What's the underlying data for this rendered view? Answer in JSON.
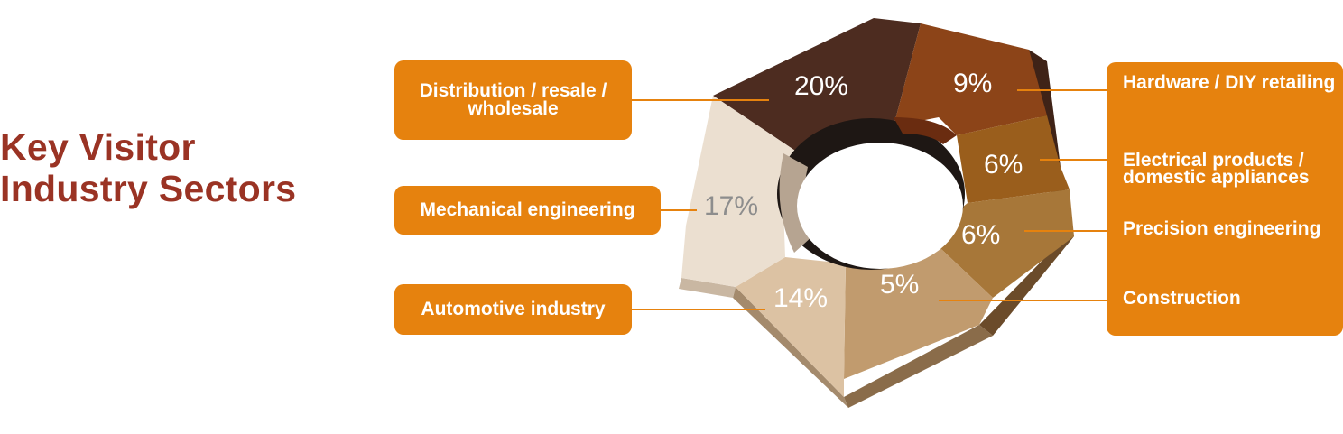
{
  "title": {
    "line1": "Key Visitor",
    "line2": "Industry Sectors"
  },
  "chart_data": {
    "type": "pie",
    "style": "3d-heptagonal-donut",
    "title": "Key Visitor Industry Sectors",
    "slices": [
      {
        "label": "Distribution / resale / wholesale",
        "value": 20,
        "display": "20%",
        "color": "#4d2c20"
      },
      {
        "label": "Hardware / DIY retailing",
        "value": 9,
        "display": "9%",
        "color": "#8c4418"
      },
      {
        "label": "Electrical products / domestic appliances",
        "value": 6,
        "display": "6%",
        "color": "#9a5e1c"
      },
      {
        "label": "Precision engineering",
        "value": 6,
        "display": "6%",
        "color": "#a77739"
      },
      {
        "label": "Construction",
        "value": 5,
        "display": "5%",
        "color": "#c19b6e"
      },
      {
        "label": "Automotive industry",
        "value": 14,
        "display": "14%",
        "color": "#dcc2a3"
      },
      {
        "label": "Mechanical engineering",
        "value": 17,
        "display": "17%",
        "color": "#ebdfd0"
      }
    ]
  },
  "callouts": {
    "distribution": "Distribution / resale / wholesale",
    "mechanical": "Mechanical engineering",
    "automotive": "Automotive industry",
    "hardware": "Hardware / DIY retailing",
    "electrical": "Electrical products / domestic appliances",
    "precision": "Precision engineering",
    "construction": "Construction"
  },
  "colors": {
    "accent_orange": "#e6820e",
    "title_red": "#9a3324",
    "leader_line": "#e6820e"
  }
}
